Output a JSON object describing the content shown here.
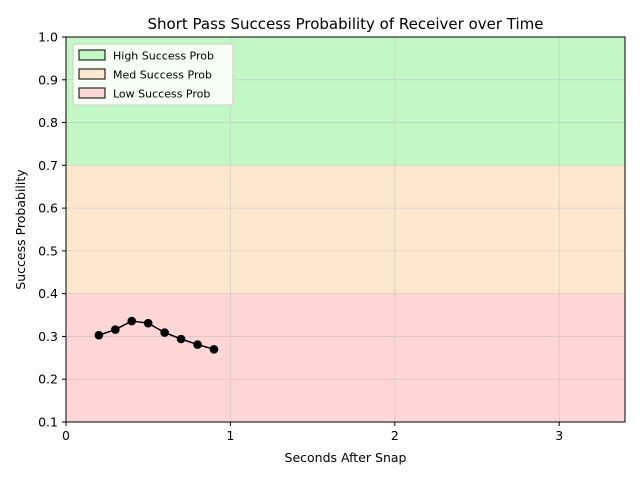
{
  "chart_data": {
    "type": "line",
    "title": "Short Pass Success Probability of Receiver over Time",
    "xlabel": "Seconds After Snap",
    "ylabel": "Success Probability",
    "xlim": [
      0,
      3.4
    ],
    "ylim": [
      0.1,
      1.0
    ],
    "xticks": [
      0,
      1,
      2,
      3
    ],
    "yticks": [
      0.1,
      0.2,
      0.3,
      0.4,
      0.5,
      0.6,
      0.7,
      0.8,
      0.9,
      1.0
    ],
    "grid": true,
    "legend_position": "top-left",
    "bands": [
      {
        "name": "High Success Prob",
        "from": 0.7,
        "to": 1.0,
        "color": "#c3f7c3"
      },
      {
        "name": "Med Success Prob",
        "from": 0.4,
        "to": 0.7,
        "color": "#fee8cd"
      },
      {
        "name": "Low Success Prob",
        "from": 0.1,
        "to": 0.4,
        "color": "#fed6d6"
      }
    ],
    "series": [
      {
        "color": "#000000",
        "x": [
          0.2,
          0.3,
          0.4,
          0.5,
          0.6,
          0.7,
          0.8,
          0.9
        ],
        "y": [
          0.303,
          0.316,
          0.336,
          0.331,
          0.309,
          0.294,
          0.281,
          0.27
        ]
      }
    ]
  }
}
